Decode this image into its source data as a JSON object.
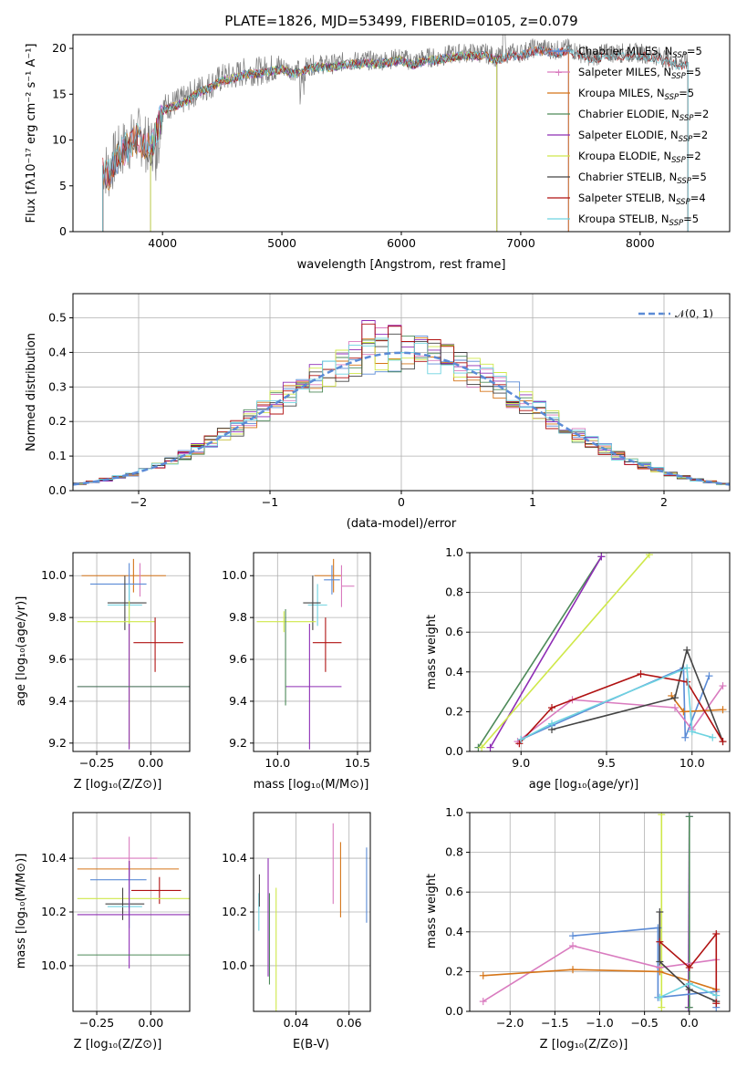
{
  "colors": {
    "chabrier_miles": "#5b8bd6",
    "salpeter_miles": "#d97bbf",
    "kroupa_miles": "#d57518",
    "chabrier_elodie": "#4d8a59",
    "salpeter_elodie": "#8e2db5",
    "kroupa_elodie": "#cfe84a",
    "chabrier_stelib": "#444444",
    "salpeter_stelib": "#b01212",
    "kroupa_stelib": "#6ed3e0",
    "data": "#7f7f7f",
    "normal": "#5b8bd6"
  },
  "spectrum": {
    "title": "PLATE=1826, MJD=53499, FIBERID=0105, z=0.079",
    "xlabel": "wavelength [Angstrom, rest frame]",
    "ylabel": "Flux [fλ10⁻¹⁷ erg cm⁻² s⁻¹ A⁻¹]",
    "legend": [
      {
        "text": "Chabrier MILES, N",
        "sub": "SSP",
        "tail": "=5"
      },
      {
        "text": "Salpeter MILES, N",
        "sub": "SSP",
        "tail": "=5"
      },
      {
        "text": "Kroupa MILES, N",
        "sub": "SSP",
        "tail": "=5"
      },
      {
        "text": "Chabrier ELODIE, N",
        "sub": "SSP",
        "tail": "=2"
      },
      {
        "text": "Salpeter ELODIE, N",
        "sub": "SSP",
        "tail": "=2"
      },
      {
        "text": "Kroupa ELODIE, N",
        "sub": "SSP",
        "tail": "=2"
      },
      {
        "text": "Chabrier STELIB, N",
        "sub": "SSP",
        "tail": "=5"
      },
      {
        "text": "Salpeter STELIB, N",
        "sub": "SSP",
        "tail": "=4"
      },
      {
        "text": "Kroupa STELIB, N",
        "sub": "SSP",
        "tail": "=5"
      }
    ]
  },
  "residuals": {
    "xlabel": "(data-model)/error",
    "ylabel": "Normed distribution",
    "legend": "𝒩(0, 1)"
  },
  "age_z": {
    "xlabel": "Z [log₁₀(Z/Z⊙)]",
    "ylabel": "age  [log₁₀(age/yr)]"
  },
  "age_mass": {
    "xlabel": "mass [log₁₀(M/M⊙)]"
  },
  "weight_age": {
    "xlabel": "age  [log₁₀(age/yr)]",
    "ylabel": "mass weight"
  },
  "mass_z": {
    "xlabel": "Z [log₁₀(Z/Z⊙)]",
    "ylabel": "mass [log₁₀(M/M⊙)]"
  },
  "mass_ebv": {
    "xlabel": "E(B-V)"
  },
  "weight_z": {
    "xlabel": "Z [log₁₀(Z/Z⊙)]",
    "ylabel": "mass weight"
  },
  "chart_data": [
    {
      "type": "line",
      "title": "PLATE=1826, MJD=53499, FIBERID=0105, z=0.079",
      "xlabel": "wavelength [Angstrom, rest frame]",
      "ylabel": "Flux [fλ10⁻¹⁷ erg cm⁻² s⁻¹ A⁻¹]",
      "xlim": [
        3250,
        8750
      ],
      "ylim": [
        0,
        21.5
      ],
      "xticks": [
        4000,
        5000,
        6000,
        7000,
        8000
      ],
      "yticks": [
        0,
        5,
        10,
        15,
        20
      ],
      "legend_loc": "right",
      "grid": false,
      "x": [
        3500,
        3550,
        3600,
        3700,
        3800,
        3900,
        3950,
        4000,
        4100,
        4200,
        4300,
        4400,
        4500,
        4600,
        4700,
        4800,
        4900,
        5000,
        5100,
        5200,
        5300,
        5400,
        5500,
        5600,
        5700,
        5800,
        5900,
        6000,
        6100,
        6200,
        6300,
        6400,
        6500,
        6600,
        6700,
        6800,
        6900,
        7000,
        7100,
        7200,
        7300,
        7400,
        7500,
        7600,
        7700,
        7800,
        7900,
        8000,
        8100,
        8200,
        8300,
        8400
      ],
      "y": [
        7.2,
        6.5,
        8.0,
        9.5,
        10.5,
        9.0,
        11.0,
        13.5,
        14.0,
        14.5,
        15.5,
        16.0,
        16.8,
        17.0,
        17.5,
        17.5,
        17.8,
        18.0,
        17.5,
        18.0,
        18.3,
        18.2,
        18.5,
        18.6,
        18.7,
        18.6,
        18.8,
        19.0,
        18.5,
        19.0,
        19.0,
        19.3,
        19.5,
        19.5,
        19.5,
        19.0,
        19.5,
        19.5,
        20.0,
        20.0,
        19.8,
        20.0,
        19.5,
        19.0,
        19.5,
        19.5,
        19.5,
        19.5,
        19.3,
        19.0,
        18.5,
        18.5
      ],
      "series": [
        {
          "name": "Chabrier MILES, N_SSP=5"
        },
        {
          "name": "Salpeter MILES, N_SSP=5"
        },
        {
          "name": "Kroupa MILES, N_SSP=5"
        },
        {
          "name": "Chabrier ELODIE, N_SSP=2"
        },
        {
          "name": "Salpeter ELODIE, N_SSP=2"
        },
        {
          "name": "Kroupa ELODIE, N_SSP=2"
        },
        {
          "name": "Chabrier STELIB, N_SSP=5"
        },
        {
          "name": "Salpeter STELIB, N_SSP=4"
        },
        {
          "name": "Kroupa STELIB, N_SSP=5"
        }
      ]
    },
    {
      "type": "line",
      "xlabel": "(data-model)/error",
      "ylabel": "Normed distribution",
      "xlim": [
        -2.5,
        2.5
      ],
      "ylim": [
        0,
        0.57
      ],
      "xticks": [
        -2,
        -1,
        0,
        1,
        2
      ],
      "yticks": [
        0.0,
        0.1,
        0.2,
        0.3,
        0.4,
        0.5
      ],
      "grid": true,
      "legend_loc": "top-right",
      "bin_width": 0.1,
      "normal_curve": {
        "name": "𝒩(0, 1)",
        "mean": 0,
        "std": 1
      }
    },
    {
      "type": "scatter",
      "xlabel": "Z [log₁₀(Z/Z⊙)]",
      "ylabel": "age  [log₁₀(age/yr)]",
      "xlim": [
        -0.36,
        0.18
      ],
      "ylim": [
        9.16,
        10.11
      ],
      "xticks": [
        -0.25,
        0.0
      ],
      "yticks": [
        9.2,
        9.4,
        9.6,
        9.8,
        10.0
      ],
      "grid": true,
      "points": [
        {
          "series": "kroupa_miles",
          "x": -0.08,
          "xerr": [
            0.24,
            0.15
          ],
          "y": 10.0,
          "yerr": [
            0.08,
            0.08
          ]
        },
        {
          "series": "salpeter_miles",
          "x": -0.05,
          "xerr": [
            0.0,
            0.0
          ],
          "y": 9.98,
          "yerr": [
            0.08,
            0.08
          ]
        },
        {
          "series": "chabrier_miles",
          "x": -0.1,
          "xerr": [
            0.18,
            0.08
          ],
          "y": 9.96,
          "yerr": [
            0.1,
            0.1
          ]
        },
        {
          "series": "kroupa_stelib",
          "x": -0.1,
          "xerr": [
            0.1,
            0.06
          ],
          "y": 9.86,
          "yerr": [
            0.1,
            0.1
          ]
        },
        {
          "series": "chabrier_stelib",
          "x": -0.12,
          "xerr": [
            0.08,
            0.1
          ],
          "y": 9.87,
          "yerr": [
            0.13,
            0.13
          ]
        },
        {
          "series": "kroupa_elodie",
          "x": -0.1,
          "xerr": [
            0.24,
            0.12
          ],
          "y": 9.78,
          "yerr": [
            0.6,
            0.1
          ]
        },
        {
          "series": "salpeter_stelib",
          "x": 0.02,
          "xerr": [
            0.1,
            0.13
          ],
          "y": 9.68,
          "yerr": [
            0.14,
            0.12
          ]
        },
        {
          "series": "salpeter_elodie",
          "x": -0.1,
          "xerr": [
            0.24,
            0.3
          ],
          "y": 9.47,
          "yerr": [
            0.3,
            0.3
          ]
        },
        {
          "series": "chabrier_elodie",
          "x": -0.1,
          "xerr": [
            0.24,
            0.32
          ],
          "y": 9.47,
          "yerr": [
            0.0,
            0.0
          ]
        }
      ]
    },
    {
      "type": "scatter",
      "xlabel": "mass [log₁₀(M/M⊙)]",
      "xlim": [
        9.85,
        10.58
      ],
      "ylim": [
        9.16,
        10.11
      ],
      "xticks": [
        10.0,
        10.5
      ],
      "yticks": [
        9.2,
        9.4,
        9.6,
        9.8,
        10.0
      ],
      "grid": true,
      "points": [
        {
          "series": "kroupa_miles",
          "x": 10.35,
          "xerr": [
            0.12,
            0.05
          ],
          "y": 10.0,
          "yerr": [
            0.08,
            0.08
          ]
        },
        {
          "series": "salpeter_miles",
          "x": 10.4,
          "xerr": [
            0.0,
            0.08
          ],
          "y": 9.95,
          "yerr": [
            0.1,
            0.1
          ]
        },
        {
          "series": "chabrier_miles",
          "x": 10.34,
          "xerr": [
            0.05,
            0.05
          ],
          "y": 9.98,
          "yerr": [
            0.07,
            0.07
          ]
        },
        {
          "series": "kroupa_stelib",
          "x": 10.25,
          "xerr": [
            0.06,
            0.06
          ],
          "y": 9.86,
          "yerr": [
            0.1,
            0.1
          ]
        },
        {
          "series": "chabrier_stelib",
          "x": 10.22,
          "xerr": [
            0.06,
            0.05
          ],
          "y": 9.87,
          "yerr": [
            0.13,
            0.13
          ]
        },
        {
          "series": "kroupa_elodie",
          "x": 10.04,
          "xerr": [
            0.17,
            0.2
          ],
          "y": 9.78,
          "yerr": [
            0.05,
            0.05
          ]
        },
        {
          "series": "salpeter_stelib",
          "x": 10.3,
          "xerr": [
            0.08,
            0.1
          ],
          "y": 9.68,
          "yerr": [
            0.14,
            0.12
          ]
        },
        {
          "series": "salpeter_elodie",
          "x": 10.2,
          "xerr": [
            0.15,
            0.2
          ],
          "y": 9.47,
          "yerr": [
            0.3,
            0.3
          ]
        },
        {
          "series": "chabrier_elodie",
          "x": 10.05,
          "xerr": [
            0.0,
            0.0
          ],
          "y": 9.6,
          "yerr": [
            0.22,
            0.24
          ]
        }
      ]
    },
    {
      "type": "line",
      "xlabel": "age  [log₁₀(age/yr)]",
      "ylabel": "mass weight",
      "xlim": [
        8.7,
        10.22
      ],
      "ylim": [
        0,
        1
      ],
      "xticks": [
        9.0,
        9.5,
        10.0
      ],
      "yticks": [
        0.0,
        0.2,
        0.4,
        0.6,
        0.8,
        1.0
      ],
      "grid": true,
      "series": [
        {
          "series": "chabrier_elodie",
          "x": [
            8.75,
            9.47
          ],
          "y": [
            0.02,
            0.98
          ]
        },
        {
          "series": "salpeter_elodie",
          "x": [
            8.82,
            9.47
          ],
          "y": [
            0.02,
            0.98
          ]
        },
        {
          "series": "kroupa_elodie",
          "x": [
            8.77,
            9.75
          ],
          "y": [
            0.02,
            0.99
          ]
        },
        {
          "series": "chabrier_miles",
          "x": [
            9.0,
            9.18,
            9.95,
            9.96,
            10.1
          ],
          "y": [
            0.06,
            0.13,
            0.42,
            0.07,
            0.38
          ]
        },
        {
          "series": "salpeter_miles",
          "x": [
            8.98,
            9.3,
            9.9,
            10.0,
            10.18
          ],
          "y": [
            0.05,
            0.26,
            0.22,
            0.11,
            0.33
          ]
        },
        {
          "series": "kroupa_miles",
          "x": [
            9.88,
            9.95,
            10.18
          ],
          "y": [
            0.28,
            0.2,
            0.21
          ]
        },
        {
          "series": "chabrier_stelib",
          "x": [
            9.18,
            9.9,
            9.97,
            10.18
          ],
          "y": [
            0.11,
            0.27,
            0.51,
            0.05
          ]
        },
        {
          "series": "salpeter_stelib",
          "x": [
            8.99,
            9.18,
            9.7,
            9.97,
            10.18
          ],
          "y": [
            0.04,
            0.22,
            0.39,
            0.35,
            0.05
          ]
        },
        {
          "series": "kroupa_stelib",
          "x": [
            9.0,
            9.18,
            9.97,
            10.0,
            10.12
          ],
          "y": [
            0.06,
            0.14,
            0.42,
            0.1,
            0.07
          ]
        }
      ]
    },
    {
      "type": "scatter",
      "xlabel": "Z [log₁₀(Z/Z⊙)]",
      "ylabel": "mass [log₁₀(M/M⊙)]",
      "xlim": [
        -0.36,
        0.18
      ],
      "ylim": [
        9.83,
        10.57
      ],
      "xticks": [
        -0.25,
        0.0
      ],
      "yticks": [
        10.0,
        10.2,
        10.4
      ],
      "grid": true,
      "points": [
        {
          "series": "salpeter_miles",
          "x": -0.1,
          "xerr": [
            0.17,
            0.13
          ],
          "y": 10.4,
          "yerr": [
            0.08,
            0.08
          ]
        },
        {
          "series": "kroupa_miles",
          "x": -0.1,
          "xerr": [
            0.24,
            0.23
          ],
          "y": 10.36,
          "yerr": [
            0.03,
            0.03
          ]
        },
        {
          "series": "chabrier_miles",
          "x": -0.1,
          "xerr": [
            0.18,
            0.08
          ],
          "y": 10.32,
          "yerr": [
            0.05,
            0.05
          ]
        },
        {
          "series": "salpeter_stelib",
          "x": 0.04,
          "xerr": [
            0.13,
            0.1
          ],
          "y": 10.28,
          "yerr": [
            0.05,
            0.05
          ]
        },
        {
          "series": "kroupa_elodie",
          "x": -0.1,
          "xerr": [
            0.24,
            0.3
          ],
          "y": 10.25,
          "yerr": [
            0.04,
            0.0
          ]
        },
        {
          "series": "chabrier_stelib",
          "x": -0.13,
          "xerr": [
            0.08,
            0.1
          ],
          "y": 10.23,
          "yerr": [
            0.06,
            0.06
          ]
        },
        {
          "series": "kroupa_stelib",
          "x": -0.1,
          "xerr": [
            0.1,
            0.06
          ],
          "y": 10.22,
          "yerr": [
            0.08,
            0.08
          ]
        },
        {
          "series": "salpeter_elodie",
          "x": -0.1,
          "xerr": [
            0.24,
            0.3
          ],
          "y": 10.19,
          "yerr": [
            0.2,
            0.2
          ]
        },
        {
          "series": "chabrier_elodie",
          "x": -0.1,
          "xerr": [
            0.24,
            0.32
          ],
          "y": 10.04,
          "yerr": [
            0.0,
            0.0
          ]
        }
      ]
    },
    {
      "type": "scatter",
      "xlabel": "E(B-V)",
      "xlim": [
        0.024,
        0.068
      ],
      "ylim": [
        9.83,
        10.57
      ],
      "xticks": [
        0.04,
        0.06
      ],
      "yticks": [
        10.0,
        10.2,
        10.4
      ],
      "grid": true,
      "points": [
        {
          "series": "salpeter_elodie",
          "x": 0.0295,
          "y": 10.18,
          "yerr": [
            0.22,
            0.22
          ]
        },
        {
          "series": "chabrier_elodie",
          "x": 0.03,
          "y": 10.1,
          "yerr": [
            0.17,
            0.17
          ]
        },
        {
          "series": "kroupa_elodie",
          "x": 0.0325,
          "y": 10.05,
          "yerr": [
            0.24,
            0.24
          ]
        },
        {
          "series": "kroupa_stelib",
          "x": 0.026,
          "y": 10.2,
          "yerr": [
            0.07,
            0.07
          ]
        },
        {
          "series": "chabrier_stelib",
          "x": 0.0262,
          "y": 10.28,
          "yerr": [
            0.06,
            0.06
          ]
        },
        {
          "series": "salpeter_miles",
          "x": 0.054,
          "y": 10.38,
          "yerr": [
            0.15,
            0.15
          ]
        },
        {
          "series": "kroupa_miles",
          "x": 0.0568,
          "y": 10.32,
          "yerr": [
            0.14,
            0.14
          ]
        },
        {
          "series": "chabrier_miles",
          "x": 0.0666,
          "y": 10.3,
          "yerr": [
            0.14,
            0.14
          ]
        }
      ]
    },
    {
      "type": "line",
      "xlabel": "Z [log₁₀(Z/Z⊙)]",
      "ylabel": "mass weight",
      "xlim": [
        -2.45,
        0.45
      ],
      "ylim": [
        0,
        1
      ],
      "xticks": [
        -2.0,
        -1.5,
        -1.0,
        -0.5,
        0.0
      ],
      "yticks": [
        0.0,
        0.2,
        0.4,
        0.6,
        0.8,
        1.0
      ],
      "grid": true,
      "series": [
        {
          "series": "kroupa_elodie",
          "x": [
            -0.31,
            -0.31
          ],
          "y": [
            0.02,
            0.99
          ]
        },
        {
          "series": "salpeter_elodie",
          "x": [
            -0.01,
            0.0
          ],
          "y": [
            0.02,
            0.98
          ]
        },
        {
          "series": "chabrier_elodie",
          "x": [
            0.0,
            0.0
          ],
          "y": [
            0.02,
            0.98
          ]
        },
        {
          "series": "chabrier_miles",
          "x": [
            -1.3,
            -0.35,
            -0.35,
            0.3,
            0.3
          ],
          "y": [
            0.38,
            0.42,
            0.07,
            0.1,
            0.02
          ]
        },
        {
          "series": "salpeter_miles",
          "x": [
            -2.3,
            -1.3,
            -0.33,
            0.3
          ],
          "y": [
            0.05,
            0.33,
            0.22,
            0.26
          ]
        },
        {
          "series": "kroupa_miles",
          "x": [
            -2.3,
            -1.3,
            -0.33,
            0.3
          ],
          "y": [
            0.18,
            0.21,
            0.2,
            0.11
          ]
        },
        {
          "series": "chabrier_stelib",
          "x": [
            -0.33,
            -0.33,
            0.0,
            0.3
          ],
          "y": [
            0.5,
            0.25,
            0.11,
            0.05
          ]
        },
        {
          "series": "salpeter_stelib",
          "x": [
            -0.33,
            0.0,
            0.3,
            0.3
          ],
          "y": [
            0.35,
            0.22,
            0.39,
            0.04
          ]
        },
        {
          "series": "kroupa_stelib",
          "x": [
            -0.33,
            0.0,
            0.3
          ],
          "y": [
            0.07,
            0.14,
            0.08
          ]
        }
      ]
    }
  ]
}
